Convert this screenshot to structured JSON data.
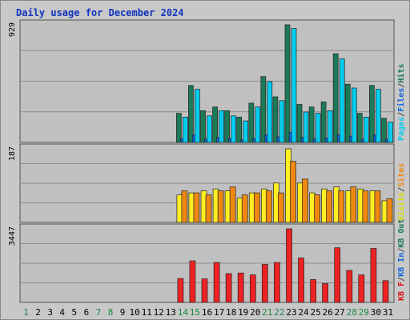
{
  "chart_data": [
    {
      "type": "bar",
      "title": "Daily usage for December 2024",
      "ymax_label": "929",
      "legend": [
        {
          "label": "Pages",
          "color": "#00ccee"
        },
        {
          "label": "/",
          "color": "#444444"
        },
        {
          "label": "Files",
          "color": "#1166dd"
        },
        {
          "label": "/",
          "color": "#444444"
        },
        {
          "label": "Hits",
          "color": "#1a7a55"
        }
      ],
      "categories": [
        "1",
        "2",
        "3",
        "4",
        "5",
        "6",
        "7",
        "8",
        "9",
        "10",
        "11",
        "12",
        "13",
        "14",
        "15",
        "16",
        "17",
        "18",
        "19",
        "20",
        "21",
        "22",
        "23",
        "24",
        "25",
        "26",
        "27",
        "28",
        "29",
        "30",
        "31"
      ],
      "weekend_days": [
        1,
        7,
        8,
        14,
        15,
        21,
        22,
        28,
        29
      ],
      "series": [
        {
          "name": "Hits",
          "color": "#1a7a55",
          "values": [
            0,
            0,
            0,
            0,
            0,
            0,
            0,
            0,
            0,
            0,
            0,
            0,
            0,
            230,
            450,
            250,
            280,
            250,
            200,
            310,
            520,
            360,
            929,
            300,
            280,
            320,
            700,
            460,
            230,
            450,
            190
          ]
        },
        {
          "name": "Files",
          "color": "#1166dd",
          "values": [
            0,
            0,
            0,
            0,
            0,
            0,
            0,
            0,
            0,
            0,
            0,
            0,
            0,
            30,
            60,
            25,
            40,
            30,
            20,
            30,
            60,
            45,
            80,
            40,
            30,
            35,
            60,
            50,
            25,
            60,
            25
          ]
        },
        {
          "name": "Pages",
          "color": "#00ccee",
          "values": [
            0,
            0,
            0,
            0,
            0,
            0,
            0,
            0,
            0,
            0,
            0,
            0,
            0,
            200,
            420,
            210,
            250,
            210,
            170,
            280,
            480,
            330,
            900,
            240,
            230,
            250,
            660,
            430,
            200,
            420,
            160
          ]
        }
      ]
    },
    {
      "type": "bar",
      "ymax_label": "187",
      "legend": [
        {
          "label": "Visits",
          "color": "#dddd00"
        },
        {
          "label": "/",
          "color": "#444444"
        },
        {
          "label": "Sites",
          "color": "#ee8811"
        }
      ],
      "categories": [
        "1",
        "2",
        "3",
        "4",
        "5",
        "6",
        "7",
        "8",
        "9",
        "10",
        "11",
        "12",
        "13",
        "14",
        "15",
        "16",
        "17",
        "18",
        "19",
        "20",
        "21",
        "22",
        "23",
        "24",
        "25",
        "26",
        "27",
        "28",
        "29",
        "30",
        "31"
      ],
      "series": [
        {
          "name": "Visits",
          "color": "#ffee22",
          "values": [
            0,
            0,
            0,
            0,
            0,
            0,
            0,
            0,
            0,
            0,
            0,
            0,
            0,
            70,
            75,
            80,
            85,
            80,
            62,
            75,
            85,
            100,
            187,
            100,
            75,
            85,
            90,
            80,
            85,
            80,
            55
          ]
        },
        {
          "name": "Sites",
          "color": "#ee8811",
          "values": [
            0,
            0,
            0,
            0,
            0,
            0,
            0,
            0,
            0,
            0,
            0,
            0,
            0,
            80,
            75,
            70,
            80,
            90,
            70,
            75,
            80,
            75,
            155,
            110,
            70,
            80,
            80,
            90,
            80,
            80,
            60
          ]
        }
      ]
    },
    {
      "type": "bar",
      "ymax_label": "3447",
      "legend": [
        {
          "label": "KB F",
          "color": "#dd1111"
        },
        {
          "label": "/",
          "color": "#444444"
        },
        {
          "label": "KB In",
          "color": "#1166dd"
        },
        {
          "label": "/",
          "color": "#444444"
        },
        {
          "label": "KB Out",
          "color": "#1a7a55"
        }
      ],
      "categories": [
        "1",
        "2",
        "3",
        "4",
        "5",
        "6",
        "7",
        "8",
        "9",
        "10",
        "11",
        "12",
        "13",
        "14",
        "15",
        "16",
        "17",
        "18",
        "19",
        "20",
        "21",
        "22",
        "23",
        "24",
        "25",
        "26",
        "27",
        "28",
        "29",
        "30",
        "31"
      ],
      "series": [
        {
          "name": "KB F",
          "color": "#ee2222",
          "values": [
            0,
            0,
            0,
            0,
            0,
            0,
            0,
            0,
            0,
            0,
            0,
            0,
            0,
            1120,
            1950,
            1100,
            1870,
            1350,
            1380,
            1290,
            1780,
            1870,
            3447,
            2080,
            1070,
            880,
            2560,
            1500,
            1290,
            2530,
            1020
          ]
        }
      ]
    }
  ]
}
